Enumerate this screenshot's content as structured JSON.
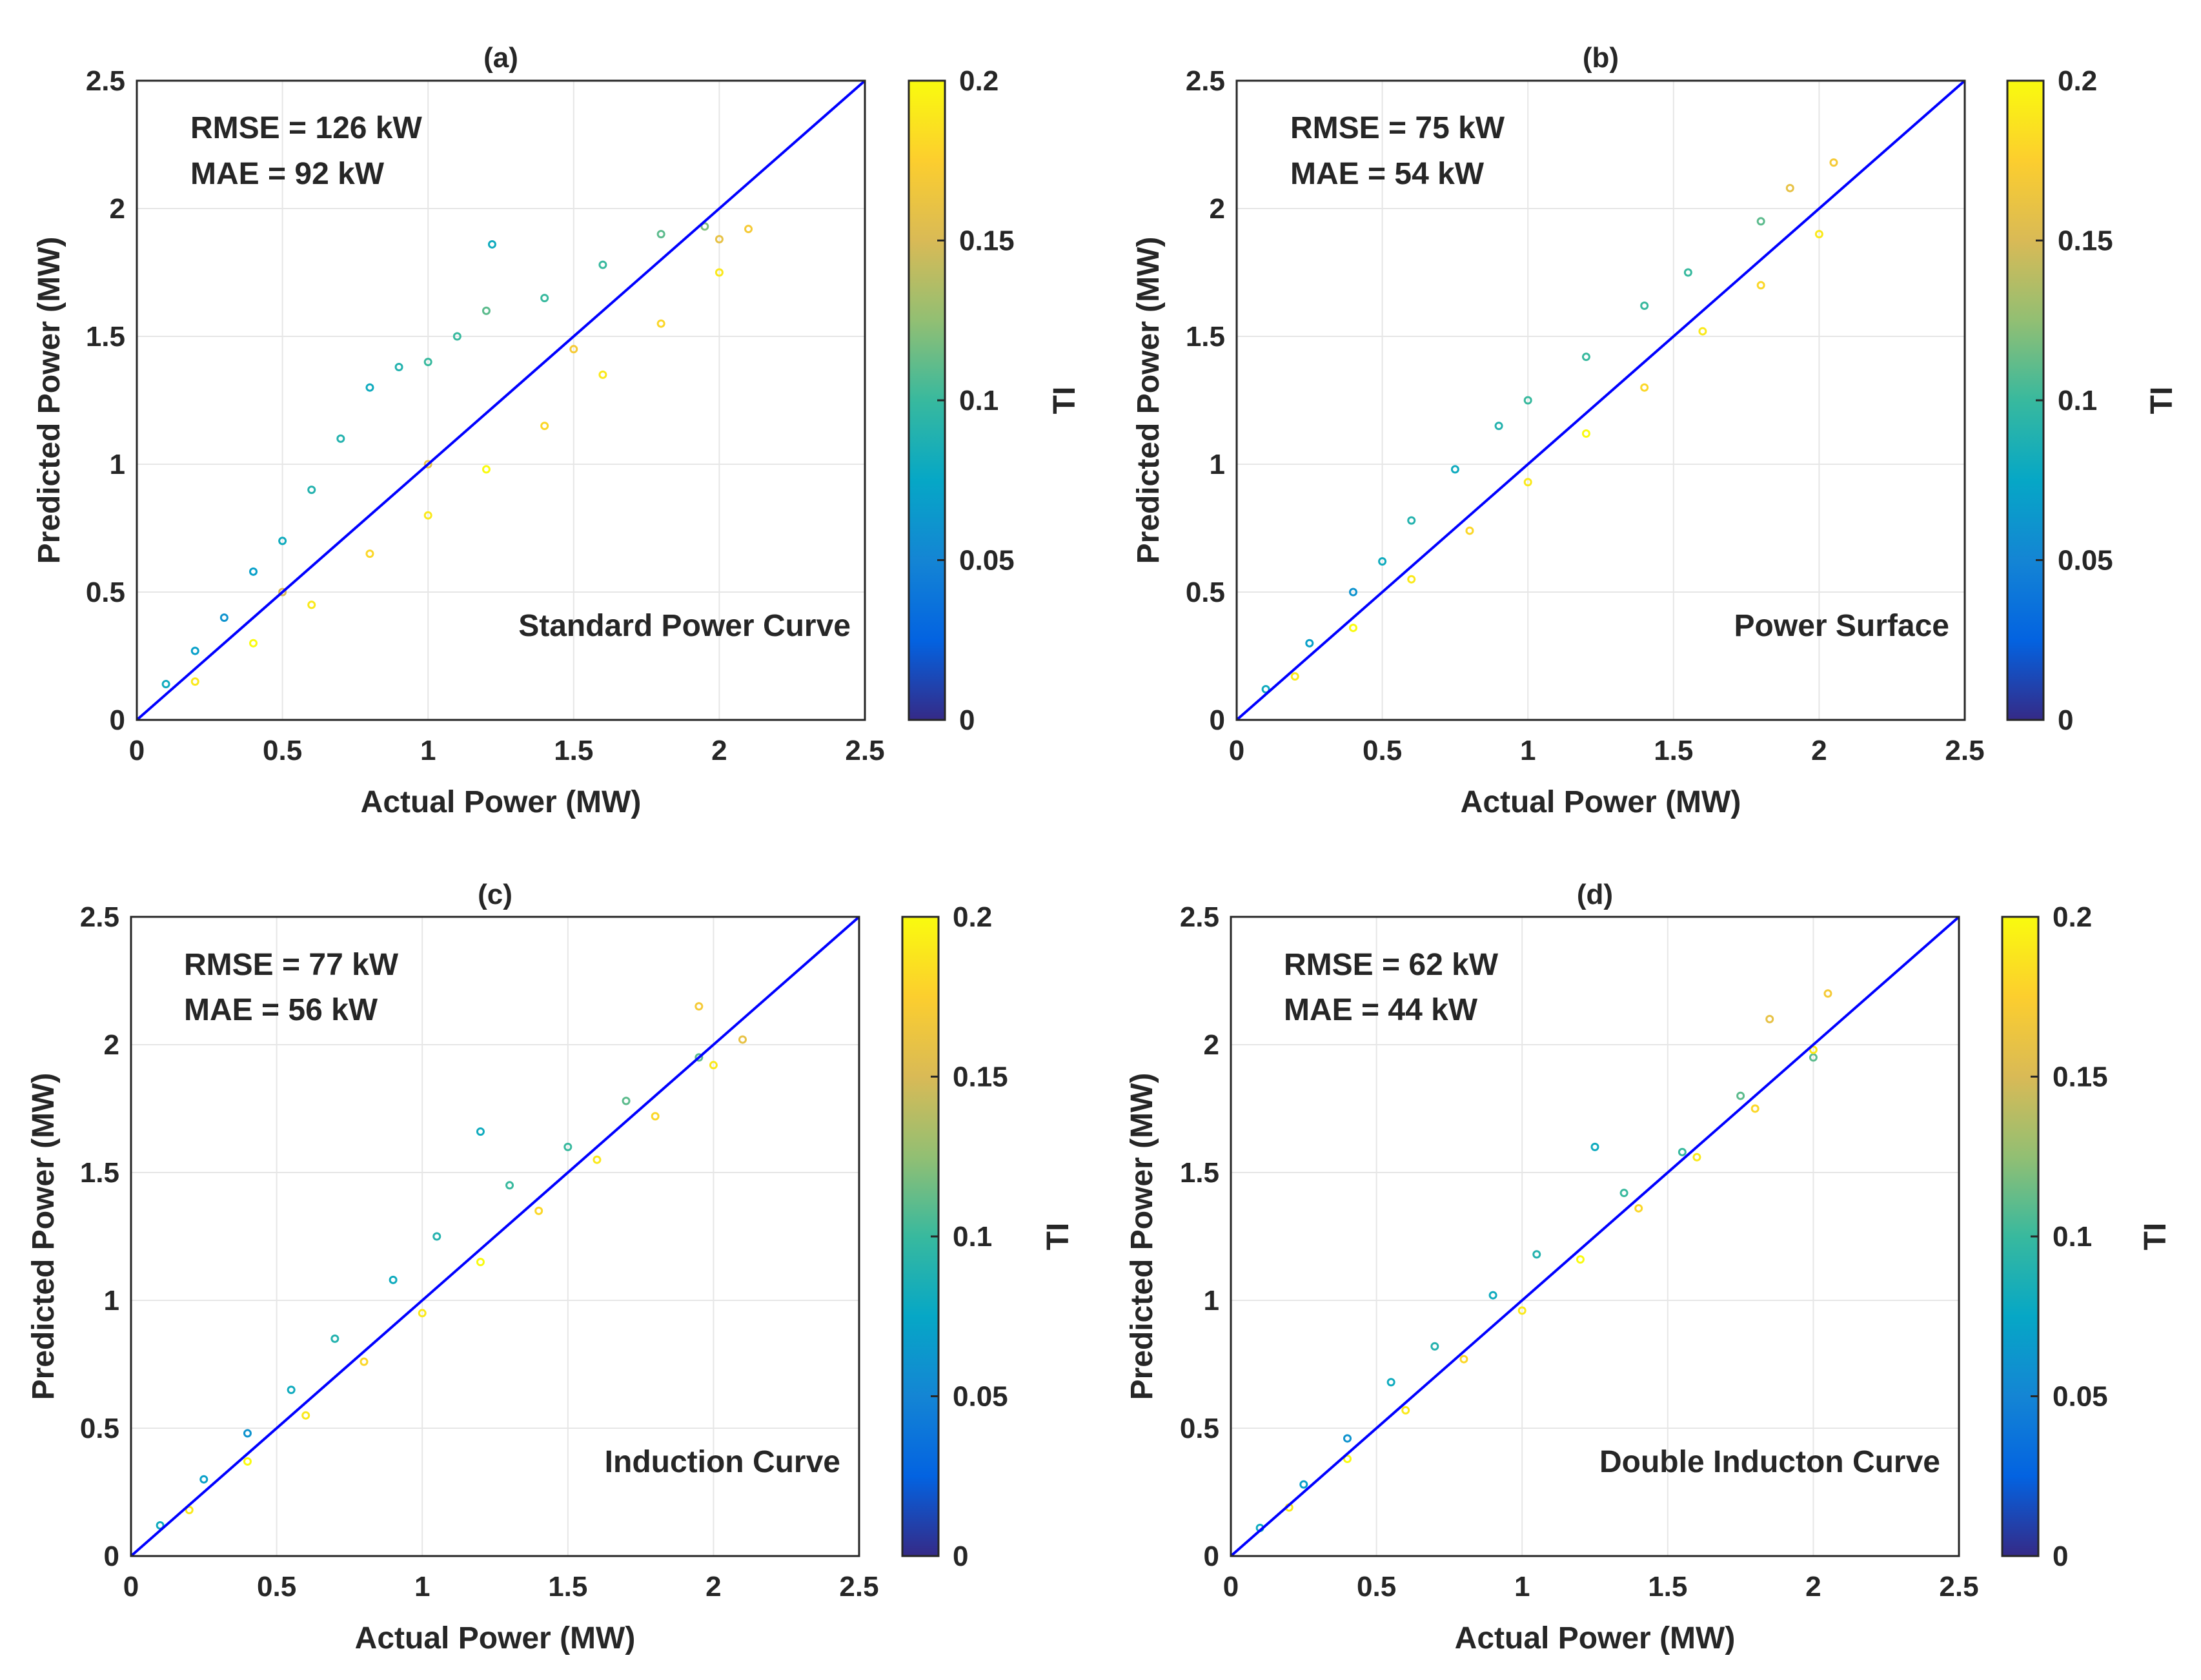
{
  "colors": {
    "identity_line": "#0000ff",
    "axis": "#262626",
    "grid": "#e6e6e6",
    "colormap": [
      "#352a87",
      "#0363e1",
      "#1485d4",
      "#06a7c6",
      "#38b99e",
      "#92bf73",
      "#d9ba56",
      "#fcce2e",
      "#f9fb0e"
    ]
  },
  "shared": {
    "xlabel": "Actual Power (MW)",
    "ylabel": "Predicted Power (MW)",
    "colorbar_label": "TI",
    "colorbar_ticks": [
      "0",
      "0.05",
      "0.1",
      "0.15",
      "0.2"
    ],
    "colorbar_range": [
      0,
      0.2
    ],
    "xlim": [
      0,
      2.5
    ],
    "ylim": [
      0,
      2.5
    ],
    "ticks": [
      "0",
      "0.5",
      "1",
      "1.5",
      "2",
      "2.5"
    ]
  },
  "panels": [
    {
      "panel_label": "(a)",
      "rmse": "RMSE = 126 kW",
      "mae": "MAE = 92 kW",
      "method": "Standard Power Curve"
    },
    {
      "panel_label": "(b)",
      "rmse": "RMSE = 75 kW",
      "mae": "MAE = 54 kW",
      "method": "Power Surface"
    },
    {
      "panel_label": "(c)",
      "rmse": "RMSE = 77 kW",
      "mae": "MAE = 56 kW",
      "method": "Induction Curve"
    },
    {
      "panel_label": "(d)",
      "rmse": "RMSE = 62 kW",
      "mae": "MAE = 44 kW",
      "method": "Double Inducton Curve"
    }
  ],
  "chart_data": [
    {
      "type": "scatter",
      "title": "(a)",
      "xlabel": "Actual Power (MW)",
      "ylabel": "Predicted Power (MW)",
      "xlim": [
        0,
        2.5
      ],
      "ylim": [
        0,
        2.5
      ],
      "colorbar": "TI",
      "grid": true,
      "reference_line": [
        [
          0,
          0
        ],
        [
          2.5,
          2.5
        ]
      ],
      "note": "Scatter approximated with a compact set of representative points (x, y in MW; ti = turbulence intensity).",
      "points": [
        {
          "x": 0.1,
          "y": 0.14,
          "ti": 0.08
        },
        {
          "x": 0.2,
          "y": 0.27,
          "ti": 0.07
        },
        {
          "x": 0.3,
          "y": 0.4,
          "ti": 0.06
        },
        {
          "x": 0.4,
          "y": 0.58,
          "ti": 0.07
        },
        {
          "x": 0.5,
          "y": 0.7,
          "ti": 0.08
        },
        {
          "x": 0.6,
          "y": 0.9,
          "ti": 0.09
        },
        {
          "x": 0.7,
          "y": 1.1,
          "ti": 0.09
        },
        {
          "x": 0.8,
          "y": 1.3,
          "ti": 0.08
        },
        {
          "x": 0.9,
          "y": 1.38,
          "ti": 0.09
        },
        {
          "x": 1.0,
          "y": 1.4,
          "ti": 0.1
        },
        {
          "x": 1.1,
          "y": 1.5,
          "ti": 0.1
        },
        {
          "x": 1.2,
          "y": 1.6,
          "ti": 0.11
        },
        {
          "x": 1.22,
          "y": 1.86,
          "ti": 0.08
        },
        {
          "x": 1.4,
          "y": 1.65,
          "ti": 0.1
        },
        {
          "x": 1.6,
          "y": 1.78,
          "ti": 0.1
        },
        {
          "x": 1.8,
          "y": 1.9,
          "ti": 0.11
        },
        {
          "x": 1.95,
          "y": 1.93,
          "ti": 0.12
        },
        {
          "x": 0.2,
          "y": 0.15,
          "ti": 0.19
        },
        {
          "x": 0.4,
          "y": 0.3,
          "ti": 0.2
        },
        {
          "x": 0.6,
          "y": 0.45,
          "ti": 0.19
        },
        {
          "x": 0.8,
          "y": 0.65,
          "ti": 0.18
        },
        {
          "x": 1.0,
          "y": 0.8,
          "ti": 0.19
        },
        {
          "x": 1.2,
          "y": 0.98,
          "ti": 0.2
        },
        {
          "x": 1.4,
          "y": 1.15,
          "ti": 0.18
        },
        {
          "x": 1.6,
          "y": 1.35,
          "ti": 0.19
        },
        {
          "x": 1.8,
          "y": 1.55,
          "ti": 0.18
        },
        {
          "x": 2.0,
          "y": 1.75,
          "ti": 0.19
        },
        {
          "x": 2.1,
          "y": 1.92,
          "ti": 0.17
        },
        {
          "x": 0.5,
          "y": 0.5,
          "ti": 0.15
        },
        {
          "x": 1.0,
          "y": 1.0,
          "ti": 0.16
        },
        {
          "x": 1.5,
          "y": 1.45,
          "ti": 0.17
        },
        {
          "x": 2.0,
          "y": 1.88,
          "ti": 0.16
        }
      ],
      "stats": {
        "RMSE_kW": 126,
        "MAE_kW": 92
      }
    },
    {
      "type": "scatter",
      "title": "(b)",
      "xlabel": "Actual Power (MW)",
      "ylabel": "Predicted Power (MW)",
      "xlim": [
        0,
        2.5
      ],
      "ylim": [
        0,
        2.5
      ],
      "colorbar": "TI",
      "grid": true,
      "reference_line": [
        [
          0,
          0
        ],
        [
          2.5,
          2.5
        ]
      ],
      "note": "Scatter approximated with a compact set of representative points.",
      "points": [
        {
          "x": 0.1,
          "y": 0.12,
          "ti": 0.08
        },
        {
          "x": 0.25,
          "y": 0.3,
          "ti": 0.07
        },
        {
          "x": 0.4,
          "y": 0.5,
          "ti": 0.06
        },
        {
          "x": 0.5,
          "y": 0.62,
          "ti": 0.08
        },
        {
          "x": 0.6,
          "y": 0.78,
          "ti": 0.09
        },
        {
          "x": 0.75,
          "y": 0.98,
          "ti": 0.08
        },
        {
          "x": 0.9,
          "y": 1.15,
          "ti": 0.09
        },
        {
          "x": 1.0,
          "y": 1.25,
          "ti": 0.1
        },
        {
          "x": 1.2,
          "y": 1.42,
          "ti": 0.1
        },
        {
          "x": 1.4,
          "y": 1.62,
          "ti": 0.1
        },
        {
          "x": 1.55,
          "y": 1.75,
          "ti": 0.1
        },
        {
          "x": 1.8,
          "y": 1.95,
          "ti": 0.11
        },
        {
          "x": 0.2,
          "y": 0.17,
          "ti": 0.19
        },
        {
          "x": 0.4,
          "y": 0.36,
          "ti": 0.2
        },
        {
          "x": 0.6,
          "y": 0.55,
          "ti": 0.19
        },
        {
          "x": 0.8,
          "y": 0.74,
          "ti": 0.18
        },
        {
          "x": 1.0,
          "y": 0.93,
          "ti": 0.19
        },
        {
          "x": 1.2,
          "y": 1.12,
          "ti": 0.2
        },
        {
          "x": 1.4,
          "y": 1.3,
          "ti": 0.18
        },
        {
          "x": 1.6,
          "y": 1.52,
          "ti": 0.19
        },
        {
          "x": 1.8,
          "y": 1.7,
          "ti": 0.18
        },
        {
          "x": 2.0,
          "y": 1.9,
          "ti": 0.19
        },
        {
          "x": 2.05,
          "y": 2.18,
          "ti": 0.17
        },
        {
          "x": 1.9,
          "y": 2.08,
          "ti": 0.16
        }
      ],
      "stats": {
        "RMSE_kW": 75,
        "MAE_kW": 54
      }
    },
    {
      "type": "scatter",
      "title": "(c)",
      "xlabel": "Actual Power (MW)",
      "ylabel": "Predicted Power (MW)",
      "xlim": [
        0,
        2.5
      ],
      "ylim": [
        0,
        2.5
      ],
      "colorbar": "TI",
      "grid": true,
      "reference_line": [
        [
          0,
          0
        ],
        [
          2.5,
          2.5
        ]
      ],
      "note": "Scatter approximated with a compact set of representative points.",
      "points": [
        {
          "x": 0.1,
          "y": 0.12,
          "ti": 0.08
        },
        {
          "x": 0.25,
          "y": 0.3,
          "ti": 0.07
        },
        {
          "x": 0.4,
          "y": 0.48,
          "ti": 0.06
        },
        {
          "x": 0.55,
          "y": 0.65,
          "ti": 0.08
        },
        {
          "x": 0.7,
          "y": 0.85,
          "ti": 0.09
        },
        {
          "x": 0.9,
          "y": 1.08,
          "ti": 0.08
        },
        {
          "x": 1.05,
          "y": 1.25,
          "ti": 0.09
        },
        {
          "x": 1.2,
          "y": 1.66,
          "ti": 0.08
        },
        {
          "x": 1.3,
          "y": 1.45,
          "ti": 0.1
        },
        {
          "x": 1.5,
          "y": 1.6,
          "ti": 0.1
        },
        {
          "x": 1.7,
          "y": 1.78,
          "ti": 0.11
        },
        {
          "x": 1.95,
          "y": 1.95,
          "ti": 0.11
        },
        {
          "x": 0.2,
          "y": 0.18,
          "ti": 0.19
        },
        {
          "x": 0.4,
          "y": 0.37,
          "ti": 0.2
        },
        {
          "x": 0.6,
          "y": 0.55,
          "ti": 0.19
        },
        {
          "x": 0.8,
          "y": 0.76,
          "ti": 0.18
        },
        {
          "x": 1.0,
          "y": 0.95,
          "ti": 0.19
        },
        {
          "x": 1.2,
          "y": 1.15,
          "ti": 0.2
        },
        {
          "x": 1.4,
          "y": 1.35,
          "ti": 0.18
        },
        {
          "x": 1.6,
          "y": 1.55,
          "ti": 0.19
        },
        {
          "x": 1.8,
          "y": 1.72,
          "ti": 0.18
        },
        {
          "x": 2.0,
          "y": 1.92,
          "ti": 0.19
        },
        {
          "x": 1.95,
          "y": 2.15,
          "ti": 0.17
        },
        {
          "x": 2.1,
          "y": 2.02,
          "ti": 0.16
        }
      ],
      "stats": {
        "RMSE_kW": 77,
        "MAE_kW": 56
      }
    },
    {
      "type": "scatter",
      "title": "(d)",
      "xlabel": "Actual Power (MW)",
      "ylabel": "Predicted Power (MW)",
      "xlim": [
        0,
        2.5
      ],
      "ylim": [
        0,
        2.5
      ],
      "colorbar": "TI",
      "grid": true,
      "reference_line": [
        [
          0,
          0
        ],
        [
          2.5,
          2.5
        ]
      ],
      "note": "Scatter approximated with a compact set of representative points.",
      "points": [
        {
          "x": 0.1,
          "y": 0.11,
          "ti": 0.08
        },
        {
          "x": 0.25,
          "y": 0.28,
          "ti": 0.07
        },
        {
          "x": 0.4,
          "y": 0.46,
          "ti": 0.06
        },
        {
          "x": 0.55,
          "y": 0.68,
          "ti": 0.08
        },
        {
          "x": 0.7,
          "y": 0.82,
          "ti": 0.09
        },
        {
          "x": 0.9,
          "y": 1.02,
          "ti": 0.08
        },
        {
          "x": 1.05,
          "y": 1.18,
          "ti": 0.09
        },
        {
          "x": 1.25,
          "y": 1.6,
          "ti": 0.08
        },
        {
          "x": 1.35,
          "y": 1.42,
          "ti": 0.1
        },
        {
          "x": 1.55,
          "y": 1.58,
          "ti": 0.1
        },
        {
          "x": 1.75,
          "y": 1.8,
          "ti": 0.11
        },
        {
          "x": 2.0,
          "y": 1.95,
          "ti": 0.11
        },
        {
          "x": 0.2,
          "y": 0.19,
          "ti": 0.19
        },
        {
          "x": 0.4,
          "y": 0.38,
          "ti": 0.2
        },
        {
          "x": 0.6,
          "y": 0.57,
          "ti": 0.19
        },
        {
          "x": 0.8,
          "y": 0.77,
          "ti": 0.18
        },
        {
          "x": 1.0,
          "y": 0.96,
          "ti": 0.19
        },
        {
          "x": 1.2,
          "y": 1.16,
          "ti": 0.2
        },
        {
          "x": 1.4,
          "y": 1.36,
          "ti": 0.18
        },
        {
          "x": 1.6,
          "y": 1.56,
          "ti": 0.19
        },
        {
          "x": 1.8,
          "y": 1.75,
          "ti": 0.18
        },
        {
          "x": 2.0,
          "y": 1.98,
          "ti": 0.19
        },
        {
          "x": 2.05,
          "y": 2.2,
          "ti": 0.17
        },
        {
          "x": 1.85,
          "y": 2.1,
          "ti": 0.16
        }
      ],
      "stats": {
        "RMSE_kW": 62,
        "MAE_kW": 44
      }
    }
  ]
}
